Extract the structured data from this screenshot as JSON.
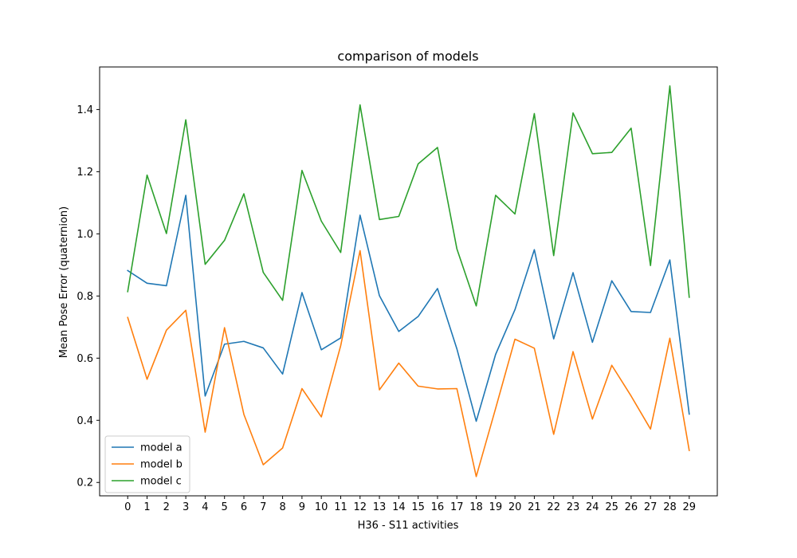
{
  "chart_data": {
    "type": "line",
    "title": "comparison of models",
    "xlabel": "H36 - S11 activities",
    "ylabel": "Mean Pose Error (quaternion)",
    "x": [
      0,
      1,
      2,
      3,
      4,
      5,
      6,
      7,
      8,
      9,
      10,
      11,
      12,
      13,
      14,
      15,
      16,
      17,
      18,
      19,
      20,
      21,
      22,
      23,
      24,
      25,
      26,
      27,
      28,
      29
    ],
    "xlim": [
      -1.45,
      30.45
    ],
    "ylim": [
      0.157,
      1.537
    ],
    "yticks": [
      0.2,
      0.4,
      0.6,
      0.8,
      1.0,
      1.2,
      1.4
    ],
    "grid": false,
    "legend_position": "lower-left",
    "series": [
      {
        "name": "model a",
        "color": "#1f77b4",
        "values": [
          0.882,
          0.841,
          0.833,
          1.124,
          0.478,
          0.645,
          0.654,
          0.633,
          0.549,
          0.811,
          0.627,
          0.665,
          1.06,
          0.801,
          0.686,
          0.734,
          0.824,
          0.63,
          0.397,
          0.612,
          0.756,
          0.949,
          0.662,
          0.875,
          0.651,
          0.849,
          0.75,
          0.747,
          0.916,
          0.42
        ]
      },
      {
        "name": "model b",
        "color": "#ff7f0e",
        "values": [
          0.731,
          0.532,
          0.69,
          0.754,
          0.362,
          0.698,
          0.419,
          0.257,
          0.311,
          0.502,
          0.411,
          0.64,
          0.946,
          0.498,
          0.584,
          0.51,
          0.501,
          0.502,
          0.219,
          0.438,
          0.661,
          0.632,
          0.355,
          0.621,
          0.404,
          0.577,
          0.478,
          0.372,
          0.664,
          0.303
        ]
      },
      {
        "name": "model c",
        "color": "#2ca02c",
        "values": [
          0.814,
          1.189,
          1.001,
          1.367,
          0.902,
          0.979,
          1.129,
          0.876,
          0.786,
          1.204,
          1.041,
          0.94,
          1.415,
          1.046,
          1.056,
          1.225,
          1.278,
          0.952,
          0.768,
          1.124,
          1.064,
          1.387,
          0.93,
          1.389,
          1.258,
          1.262,
          1.34,
          0.898,
          1.476,
          0.796
        ]
      }
    ]
  }
}
